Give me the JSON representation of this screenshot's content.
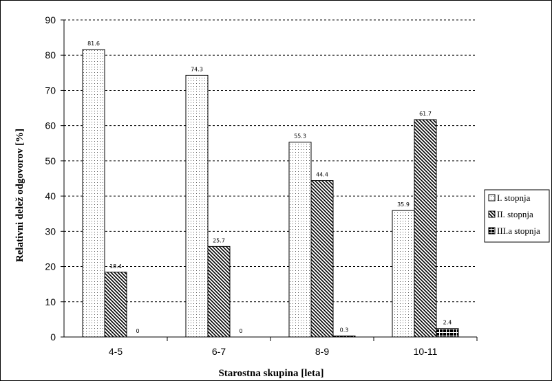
{
  "chart_data": {
    "type": "bar",
    "title": "",
    "xlabel": "Starostna skupina [leta]",
    "ylabel": "Relativni delež odgovorov [%]",
    "ylim": [
      0,
      90
    ],
    "ytick_step": 10,
    "grid": "horizontal dashed",
    "legend_position": "right",
    "categories": [
      "4-5",
      "6-7",
      "8-9",
      "10-11"
    ],
    "series": [
      {
        "name": "I. stopnja",
        "pattern": "dots",
        "values": [
          81.6,
          74.3,
          55.3,
          35.9
        ],
        "labels": [
          "81.6",
          "74.3",
          "55.3",
          "35.9"
        ]
      },
      {
        "name": "II. stopnja",
        "pattern": "diagonal",
        "values": [
          18.4,
          25.7,
          44.4,
          61.7
        ],
        "labels": [
          "18.4",
          "25.7",
          "44.4",
          "61.7"
        ]
      },
      {
        "name": "III.a stopnja",
        "pattern": "grid-dark",
        "values": [
          0,
          0,
          0.3,
          2.4
        ],
        "labels": [
          "0",
          "0",
          "0.3",
          "2.4"
        ]
      }
    ]
  }
}
